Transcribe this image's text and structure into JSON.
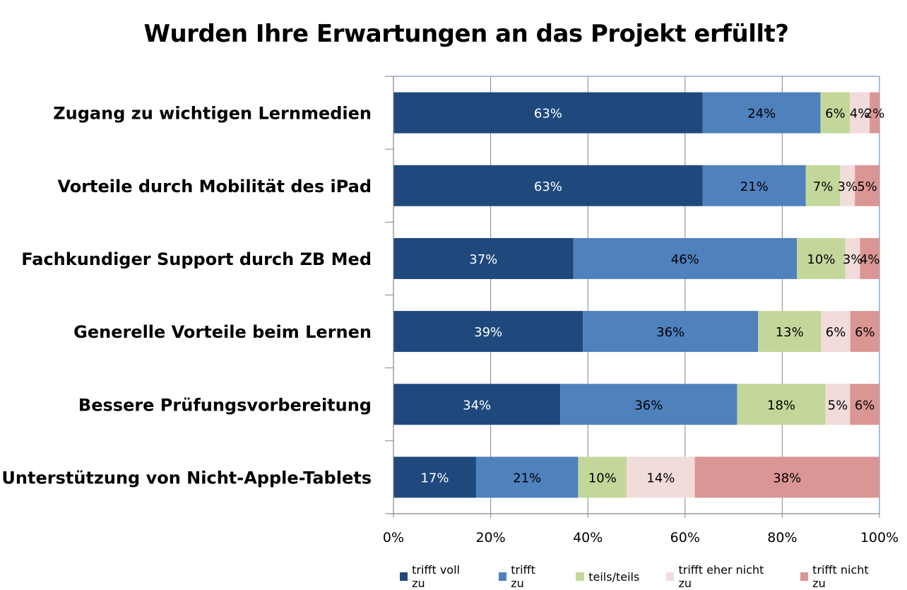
{
  "chart_data": {
    "type": "bar",
    "orientation": "horizontal",
    "stacked": "percent",
    "title": "Wurden Ihre Erwartungen an das Projekt erfüllt?",
    "xlabel": "",
    "ylabel": "",
    "xlim": [
      0,
      100
    ],
    "x_ticks": [
      "0%",
      "20%",
      "40%",
      "60%",
      "80%",
      "100%"
    ],
    "grid": true,
    "legend_position": "bottom",
    "categories": [
      "Zugang zu wichtigen Lernmedien",
      "Vorteile durch Mobilität des iPad",
      "Fachkundiger Support durch ZB Med",
      "Generelle Vorteile beim Lernen",
      "Bessere Prüfungsvorbereitung",
      "Unterstützung von Nicht-Apple-Tablets"
    ],
    "series": [
      {
        "name": "trifft voll zu",
        "color": "#1F497D",
        "label_color": "#ffffff",
        "values": [
          63,
          63,
          37,
          39,
          34,
          17
        ]
      },
      {
        "name": "trifft zu",
        "color": "#4F81BD",
        "label_color": "#000000",
        "values": [
          24,
          21,
          46,
          36,
          36,
          21
        ]
      },
      {
        "name": "teils/teils",
        "color": "#C4D79B",
        "label_color": "#000000",
        "values": [
          6,
          7,
          10,
          13,
          18,
          10
        ]
      },
      {
        "name": "trifft eher nicht zu",
        "color": "#F2DCDB",
        "label_color": "#000000",
        "values": [
          4,
          3,
          3,
          6,
          5,
          14
        ]
      },
      {
        "name": "trifft nicht zu",
        "color": "#DA9694",
        "label_color": "#000000",
        "values": [
          2,
          5,
          4,
          6,
          6,
          38
        ]
      }
    ]
  }
}
